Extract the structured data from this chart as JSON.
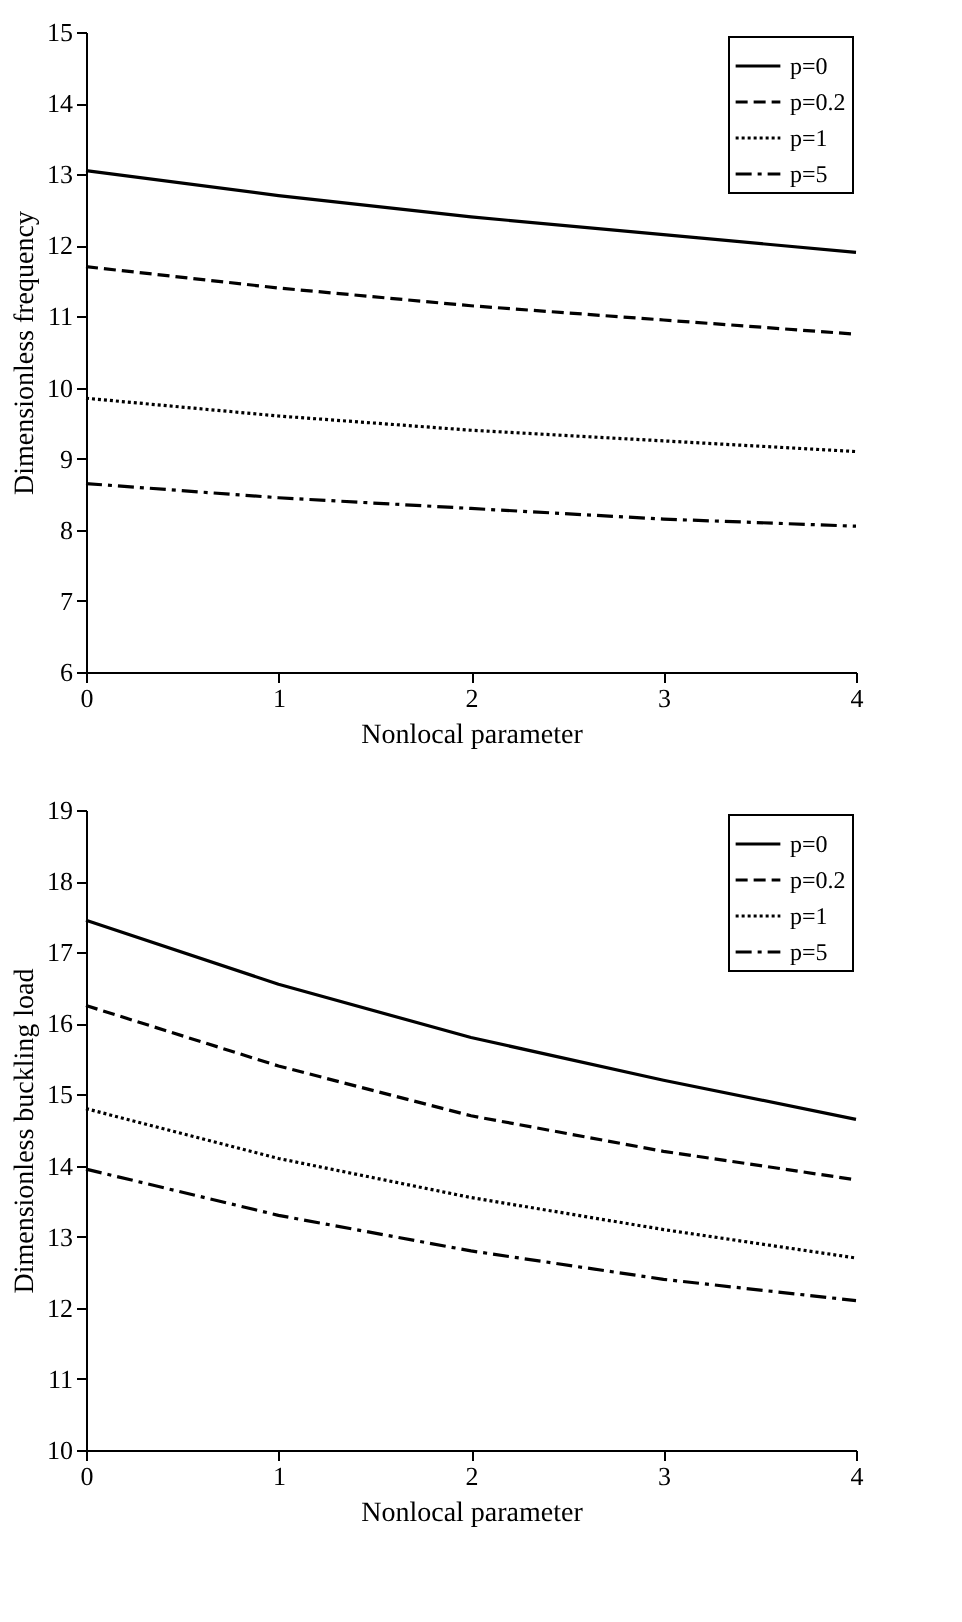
{
  "chart_data": [
    {
      "type": "line",
      "xlabel": "Nonlocal parameter",
      "ylabel": "Dimensionless frequency",
      "x": [
        0,
        1,
        2,
        3,
        4
      ],
      "xlim": [
        0,
        4
      ],
      "xticks": [
        0,
        1,
        2,
        3,
        4
      ],
      "ylim": [
        6,
        15
      ],
      "yticks": [
        6,
        7,
        8,
        9,
        10,
        11,
        12,
        13,
        14,
        15
      ],
      "grid": false,
      "legend": "top right",
      "marker": "none",
      "series": [
        {
          "name": "p=0",
          "color": "#000000",
          "line_style": "solid",
          "values": [
            13.05,
            12.7,
            12.4,
            12.15,
            11.9
          ]
        },
        {
          "name": "p=0.2",
          "color": "#000000",
          "line_style": "dashed",
          "values": [
            11.7,
            11.4,
            11.15,
            10.95,
            10.75
          ]
        },
        {
          "name": "p=1",
          "color": "#000000",
          "line_style": "dotted",
          "values": [
            9.85,
            9.6,
            9.4,
            9.25,
            9.1
          ]
        },
        {
          "name": "p=5",
          "color": "#000000",
          "line_style": "dashdot",
          "values": [
            8.65,
            8.45,
            8.3,
            8.15,
            8.05
          ]
        }
      ]
    },
    {
      "type": "line",
      "xlabel": "Nonlocal parameter",
      "ylabel": "Dimensionless buckling load",
      "x": [
        0,
        1,
        2,
        3,
        4
      ],
      "xlim": [
        0,
        4
      ],
      "xticks": [
        0,
        1,
        2,
        3,
        4
      ],
      "ylim": [
        10,
        19
      ],
      "yticks": [
        10,
        11,
        12,
        13,
        14,
        15,
        16,
        17,
        18,
        19
      ],
      "grid": false,
      "legend": "top right",
      "marker": "none",
      "series": [
        {
          "name": "p=0",
          "color": "#000000",
          "line_style": "solid",
          "values": [
            17.45,
            16.55,
            15.8,
            15.2,
            14.65
          ]
        },
        {
          "name": "p=0.2",
          "color": "#000000",
          "line_style": "dashed",
          "values": [
            16.25,
            15.4,
            14.7,
            14.2,
            13.8
          ]
        },
        {
          "name": "p=1",
          "color": "#000000",
          "line_style": "dotted",
          "values": [
            14.8,
            14.1,
            13.55,
            13.1,
            12.7
          ]
        },
        {
          "name": "p=5",
          "color": "#000000",
          "line_style": "dashdot",
          "values": [
            13.95,
            13.3,
            12.8,
            12.4,
            12.1
          ]
        }
      ]
    }
  ]
}
